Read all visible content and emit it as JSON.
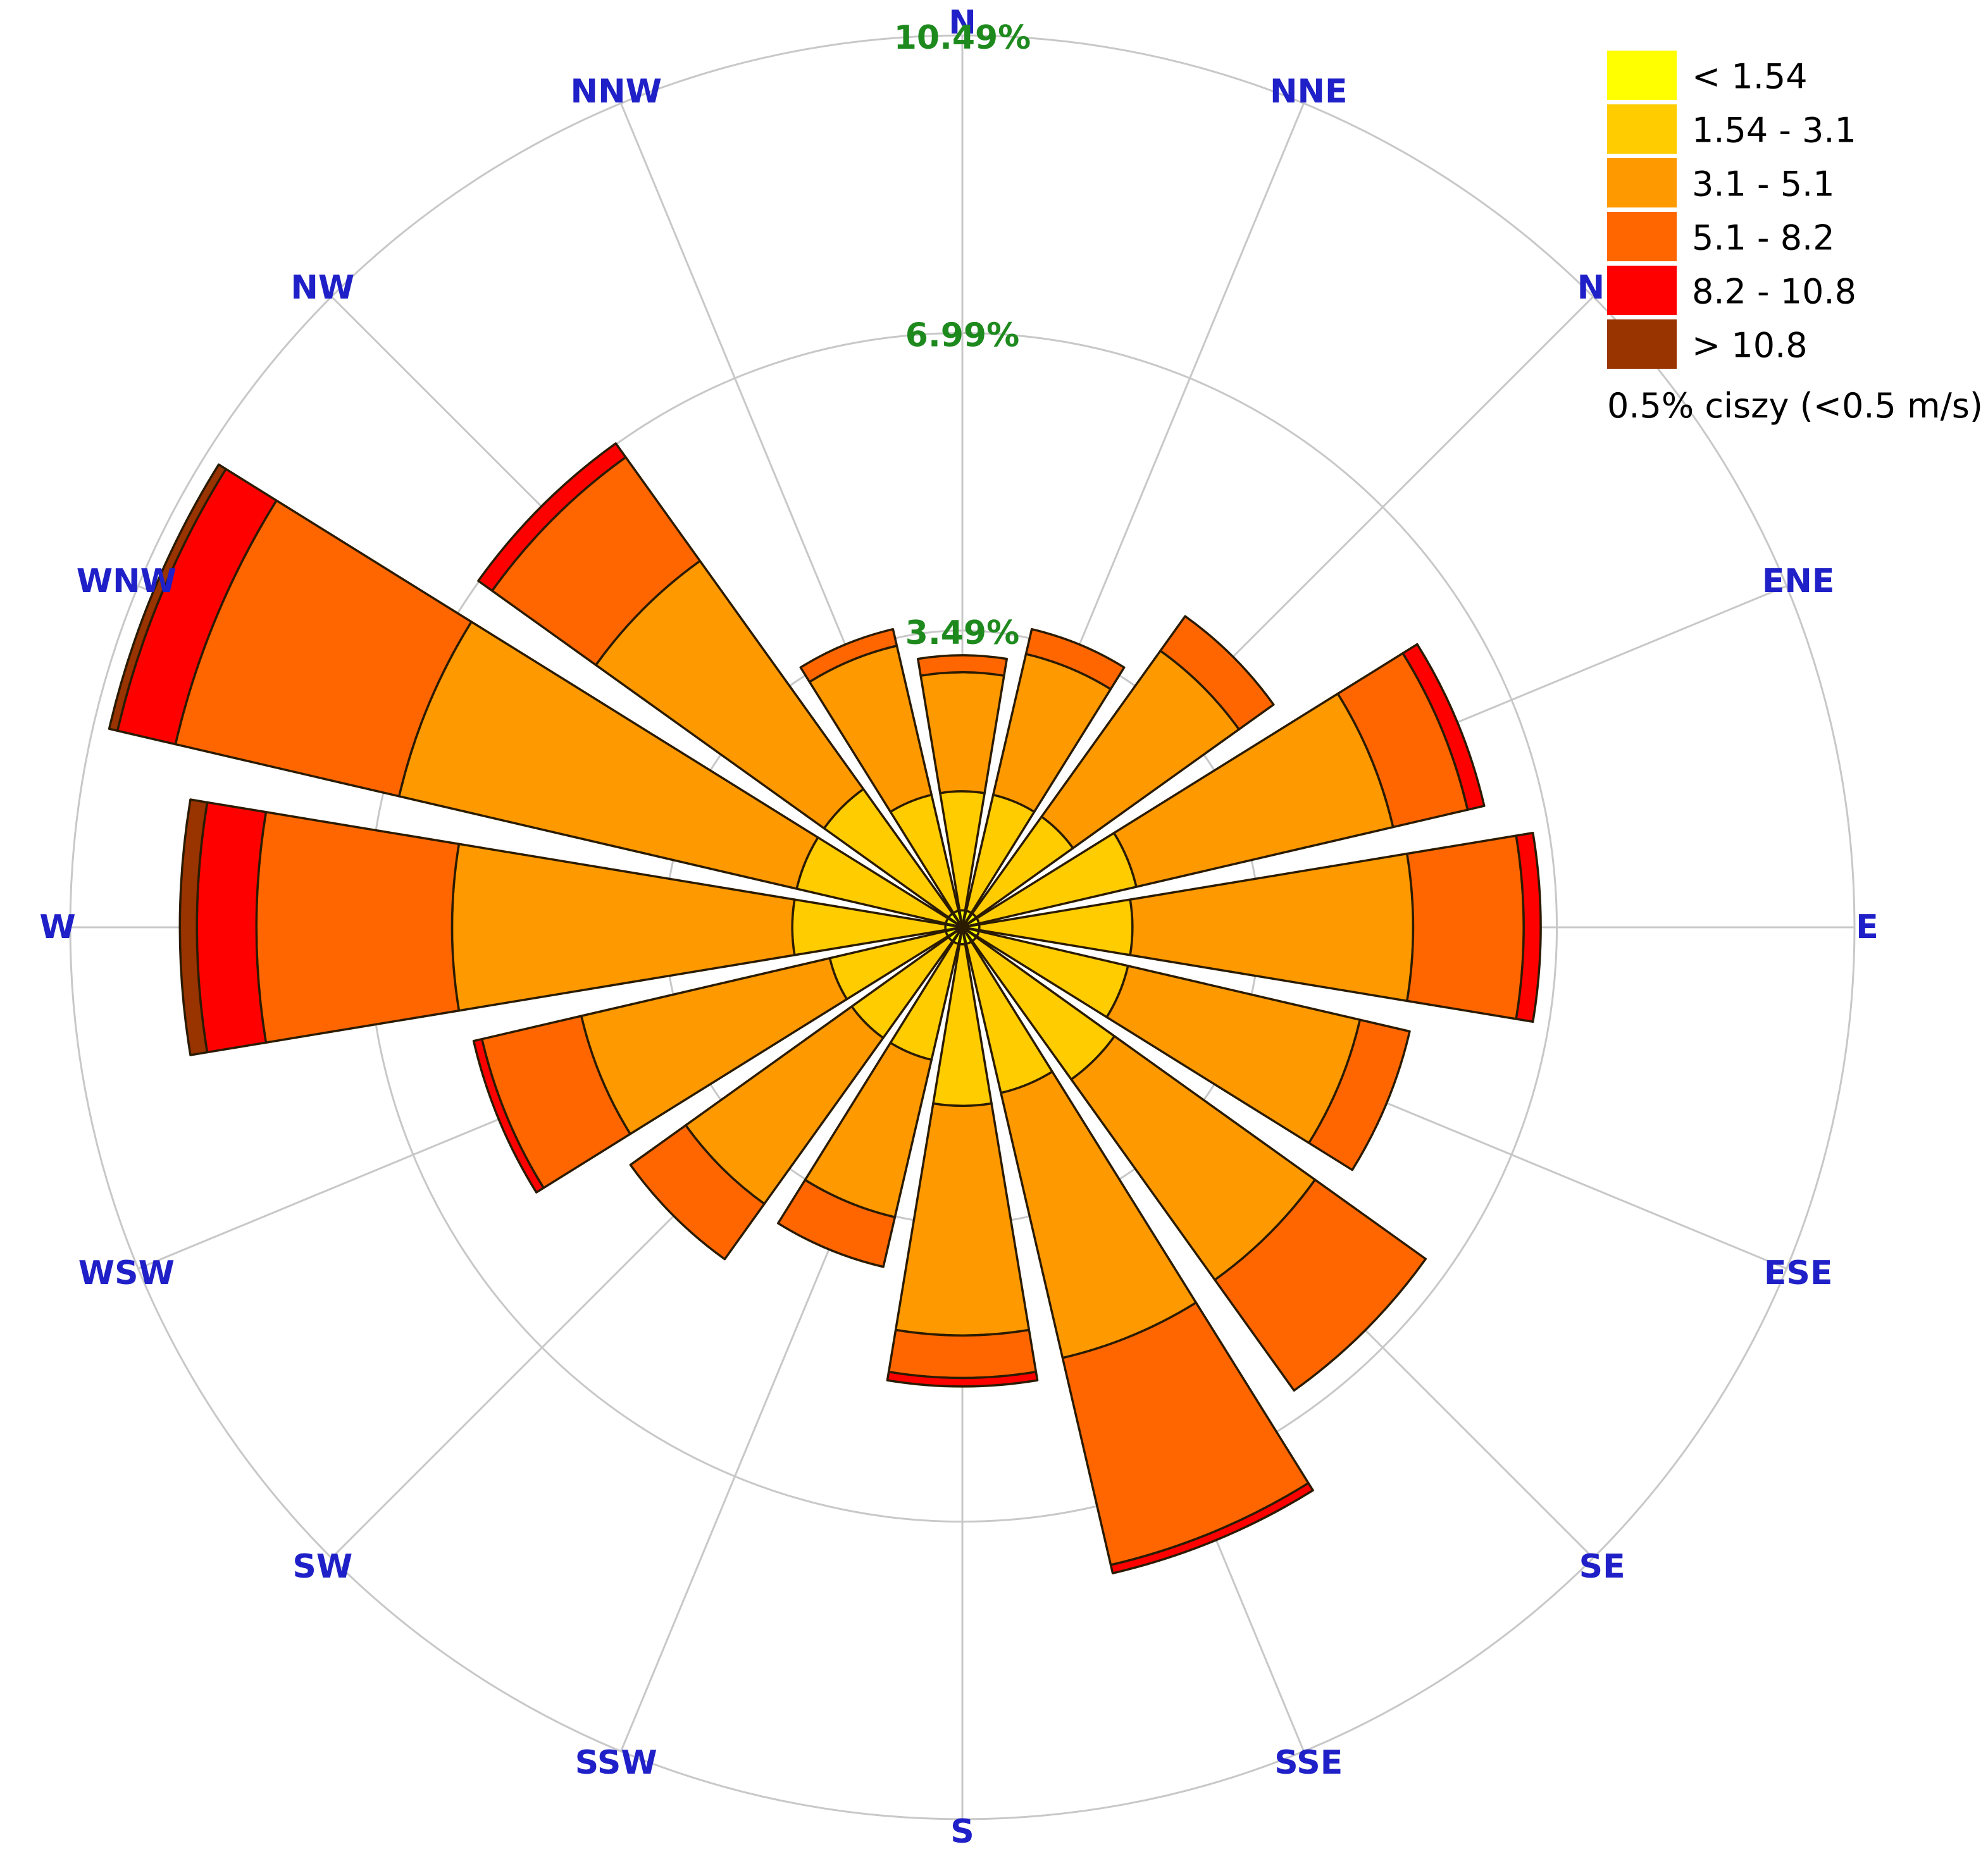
{
  "chart_data": {
    "type": "wind-rose",
    "rings": [
      3.49,
      6.99,
      10.49
    ],
    "ring_labels": [
      "3.49%",
      "6.99%",
      "10.49%"
    ],
    "directions": [
      "N",
      "NNE",
      "NE",
      "ENE",
      "E",
      "ESE",
      "SE",
      "SSE",
      "S",
      "SSW",
      "SW",
      "WSW",
      "W",
      "WNW",
      "NW",
      "NNW"
    ],
    "direction_labels": [
      "N",
      "NNE",
      "NE",
      "ENE",
      "E",
      "ESE",
      "SE",
      "SSE",
      "S",
      "SSW",
      "SW",
      "WSW",
      "W",
      "WNW",
      "NW",
      "NNW"
    ],
    "bins": [
      {
        "label": "< 1.54",
        "color": "#ffff00"
      },
      {
        "label": "1.54 - 3.1",
        "color": "#ffcc00"
      },
      {
        "label": "3.1 - 5.1",
        "color": "#ff9900"
      },
      {
        "label": "5.1 - 8.2",
        "color": "#ff6600"
      },
      {
        "label": "8.2 - 10.8",
        "color": "#ff0000"
      },
      {
        "label": "> 10.8",
        "color": "#993300"
      }
    ],
    "cumulative_percent": [
      {
        "direction": "N",
        "values": [
          0.2,
          1.6,
          3.0,
          3.2,
          3.2,
          3.2
        ]
      },
      {
        "direction": "NNE",
        "values": [
          0.2,
          1.6,
          3.3,
          3.6,
          3.6,
          3.6
        ]
      },
      {
        "direction": "NE",
        "values": [
          0.2,
          1.6,
          4.0,
          4.5,
          4.5,
          4.5
        ]
      },
      {
        "direction": "ENE",
        "values": [
          0.2,
          2.1,
          5.2,
          6.1,
          6.3,
          6.3
        ]
      },
      {
        "direction": "E",
        "values": [
          0.2,
          2.0,
          5.3,
          6.6,
          6.8,
          6.8
        ]
      },
      {
        "direction": "ESE",
        "values": [
          0.2,
          2.0,
          4.8,
          5.4,
          5.4,
          5.4
        ]
      },
      {
        "direction": "SE",
        "values": [
          0.2,
          2.2,
          5.1,
          6.7,
          6.7,
          6.7
        ]
      },
      {
        "direction": "SSE",
        "values": [
          0.2,
          2.0,
          5.2,
          7.7,
          7.8,
          7.8
        ]
      },
      {
        "direction": "S",
        "values": [
          0.2,
          2.1,
          4.8,
          5.3,
          5.4,
          5.4
        ]
      },
      {
        "direction": "SSW",
        "values": [
          0.2,
          1.6,
          3.5,
          4.1,
          4.1,
          4.1
        ]
      },
      {
        "direction": "SW",
        "values": [
          0.2,
          1.6,
          4.0,
          4.8,
          4.8,
          4.8
        ]
      },
      {
        "direction": "WSW",
        "values": [
          0.2,
          1.6,
          4.6,
          5.8,
          5.9,
          5.9
        ]
      },
      {
        "direction": "W",
        "values": [
          0.2,
          2.0,
          6.0,
          8.3,
          9.0,
          9.2
        ]
      },
      {
        "direction": "WNW",
        "values": [
          0.2,
          2.0,
          6.8,
          9.5,
          10.2,
          10.3
        ]
      },
      {
        "direction": "NW",
        "values": [
          0.2,
          2.0,
          5.3,
          6.8,
          7.0,
          7.0
        ]
      },
      {
        "direction": "NNW",
        "values": [
          0.2,
          1.6,
          3.4,
          3.6,
          3.6,
          3.6
        ]
      }
    ],
    "calm_text": "0.5% ciszy (<0.5 m/s)",
    "legend_position": "top-right",
    "grid": true
  },
  "colors": {
    "ring_line": "#c8c8c8",
    "direction_label": "#2020c8",
    "ring_label": "#1e8a1e",
    "segment_outline": "#2b1b00"
  }
}
